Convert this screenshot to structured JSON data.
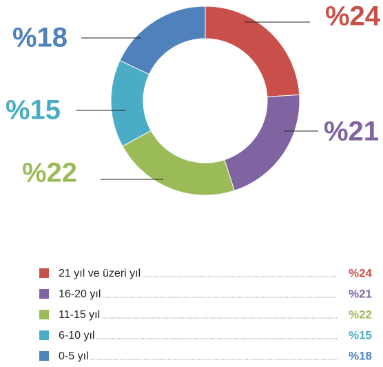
{
  "chart_data": {
    "type": "pie",
    "donut": true,
    "categories": [
      "21 yıl ve üzeri yıl",
      "16-20 yıl",
      "11-15 yıl",
      "6-10 yıl",
      "0-5 yıl"
    ],
    "values": [
      24,
      21,
      22,
      15,
      18
    ],
    "value_labels": [
      "%24",
      "%21",
      "%22",
      "%15",
      "%18"
    ],
    "colors": [
      "#c9504a",
      "#8064a2",
      "#9bbb59",
      "#4bacc6",
      "#4f81bd"
    ]
  }
}
